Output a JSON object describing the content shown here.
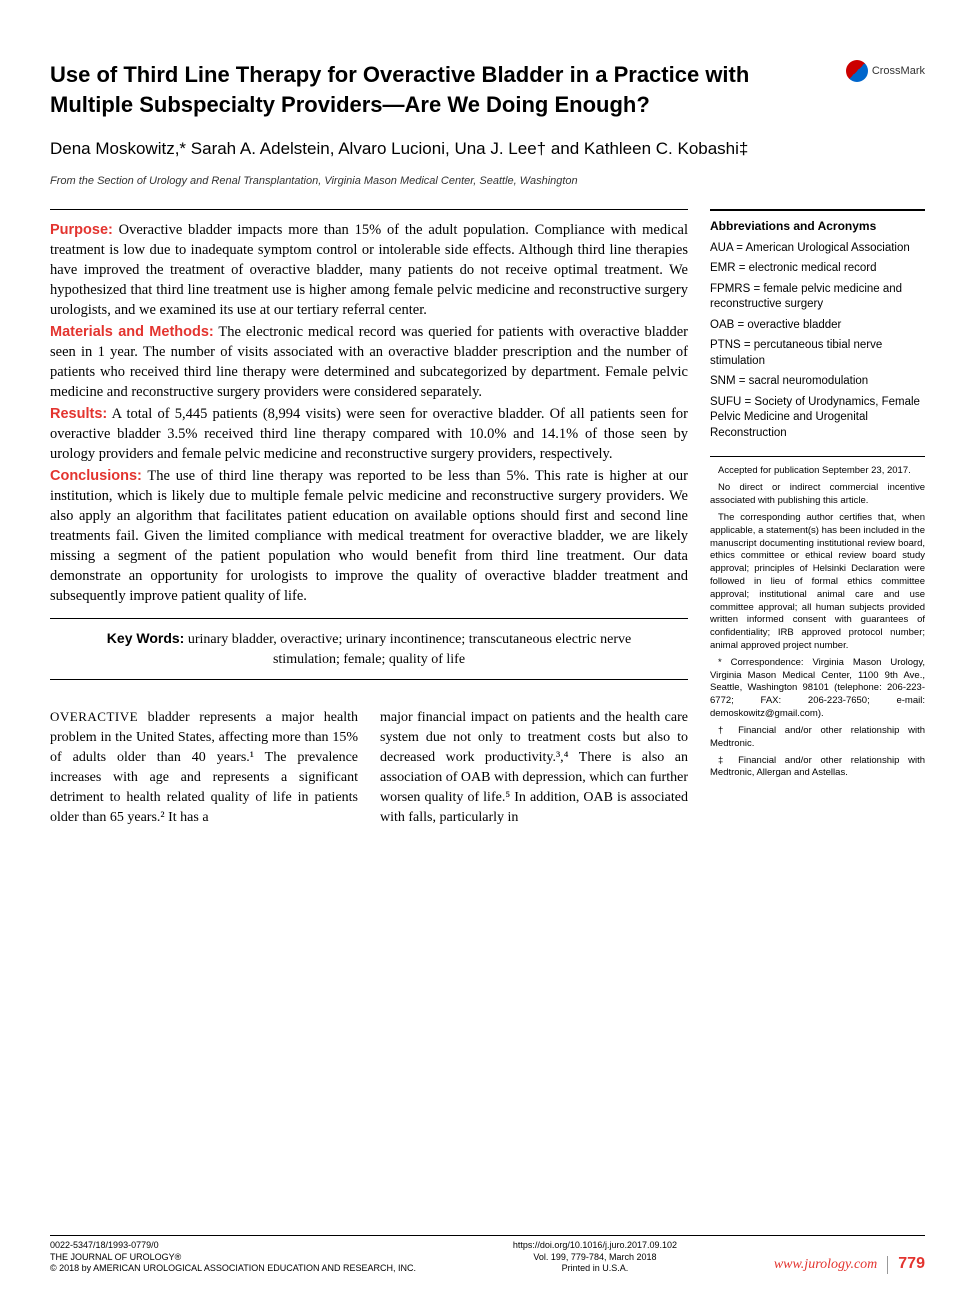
{
  "header": {
    "title": "Use of Third Line Therapy for Overactive Bladder in a Practice with Multiple Subspecialty Providers—Are We Doing Enough?",
    "crossmark_label": "CrossMark",
    "authors": "Dena Moskowitz,* Sarah A. Adelstein, Alvaro Lucioni, Una J. Lee† and Kathleen C. Kobashi‡",
    "affiliation": "From the Section of Urology and Renal Transplantation, Virginia Mason Medical Center, Seattle, Washington"
  },
  "abstract": {
    "purpose_label": "Purpose:",
    "purpose_text": " Overactive bladder impacts more than 15% of the adult population. Compliance with medical treatment is low due to inadequate symptom control or intolerable side effects. Although third line therapies have improved the treatment of overactive bladder, many patients do not receive optimal treatment. We hypothesized that third line treatment use is higher among female pelvic medicine and reconstructive surgery urologists, and we examined its use at our tertiary referral center.",
    "methods_label": "Materials and Methods:",
    "methods_text": " The electronic medical record was queried for patients with overactive bladder seen in 1 year. The number of visits associated with an overactive bladder prescription and the number of patients who received third line therapy were determined and subcategorized by department. Female pelvic medicine and reconstructive surgery providers were considered separately.",
    "results_label": "Results:",
    "results_text": " A total of 5,445 patients (8,994 visits) were seen for overactive bladder. Of all patients seen for overactive bladder 3.5% received third line therapy compared with 10.0% and 14.1% of those seen by urology providers and female pelvic medicine and reconstructive surgery providers, respectively.",
    "conclusions_label": "Conclusions:",
    "conclusions_text": " The use of third line therapy was reported to be less than 5%. This rate is higher at our institution, which is likely due to multiple female pelvic medicine and reconstructive surgery providers. We also apply an algorithm that facilitates patient education on available options should first and second line treatments fail. Given the limited compliance with medical treatment for overactive bladder, we are likely missing a segment of the patient population who would benefit from third line treatment. Our data demonstrate an opportunity for urologists to improve the quality of overactive bladder treatment and subsequently improve patient quality of life.",
    "keywords_label": "Key Words:",
    "keywords_text": " urinary bladder, overactive; urinary incontinence; transcutaneous electric nerve stimulation; female; quality of life"
  },
  "sidebar": {
    "abbrev_title": "Abbreviations and Acronyms",
    "abbreviations": [
      "AUA = American Urological Association",
      "EMR = electronic medical record",
      "FPMRS = female pelvic medicine and reconstructive surgery",
      "OAB = overactive bladder",
      "PTNS = percutaneous tibial nerve stimulation",
      "SNM = sacral neuromodulation",
      "SUFU = Society of Urodynamics, Female Pelvic Medicine and Urogenital Reconstruction"
    ],
    "notes": [
      "Accepted for publication September 23, 2017.",
      "No direct or indirect commercial incentive associated with publishing this article.",
      "The corresponding author certifies that, when applicable, a statement(s) has been included in the manuscript documenting institutional review board, ethics committee or ethical review board study approval; principles of Helsinki Declaration were followed in lieu of formal ethics committee approval; institutional animal care and use committee approval; all human subjects provided written informed consent with guarantees of confidentiality; IRB approved protocol number; animal approved project number.",
      "* Correspondence: Virginia Mason Urology, Virginia Mason Medical Center, 1100 9th Ave., Seattle, Washington 98101 (telephone: 206-223-6772; FAX: 206-223-7650; e-mail: demoskowitz@gmail.com).",
      "† Financial and/or other relationship with Medtronic.",
      "‡ Financial and/or other relationship with Medtronic, Allergan and Astellas."
    ]
  },
  "body": {
    "col1_lead": "Overactive",
    "col1_text": " bladder represents a major health problem in the United States, affecting more than 15% of adults older than 40 years.¹ The prevalence increases with age and represents a significant detriment to health related quality of life in patients older than 65 years.² It has a",
    "col2_text": "major financial impact on patients and the health care system due not only to treatment costs but also to decreased work productivity.³,⁴ There is also an association of OAB with depression, which can further worsen quality of life.⁵ In addition, OAB is associated with falls, particularly in"
  },
  "footer": {
    "left_line1": "0022-5347/18/1993-0779/0",
    "left_line2": "THE JOURNAL OF UROLOGY®",
    "left_line3": "© 2018 by AMERICAN UROLOGICAL ASSOCIATION EDUCATION AND RESEARCH, INC.",
    "center_line1": "https://doi.org/10.1016/j.juro.2017.09.102",
    "center_line2": "Vol. 199, 779-784, March 2018",
    "center_line3": "Printed in U.S.A.",
    "url": "www.jurology.com",
    "page": "779"
  },
  "colors": {
    "accent_red": "#e3342f",
    "text": "#000000",
    "background": "#ffffff"
  }
}
